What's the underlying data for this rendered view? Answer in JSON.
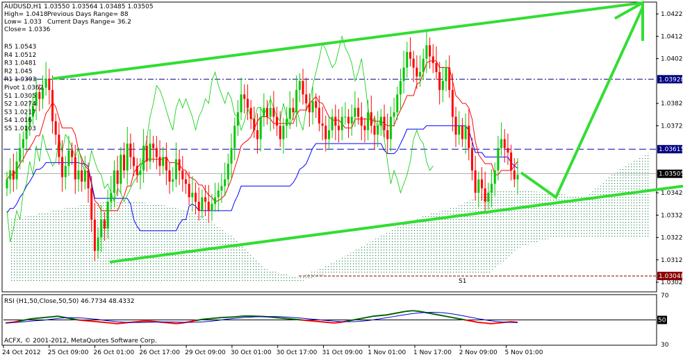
{
  "chart_data": {
    "type": "candlestick",
    "symbol_line": "AUDUSD,H1  1.03550 1.03564 1.03485 1.03505",
    "stats": [
      {
        "label": "High= 1.0418",
        "extra": "Previous Days Range= 88"
      },
      {
        "label": "Low= 1.033",
        "extra": "Current Days Range= 36.2"
      },
      {
        "label": "Close= 1.0336",
        "extra": ""
      }
    ],
    "pivots": [
      {
        "label": "R5 1.0543"
      },
      {
        "label": "R4 1.0512"
      },
      {
        "label": "R3 1.0481"
      },
      {
        "label": "R2 1.045"
      },
      {
        "label": "R1 1.0393"
      },
      {
        "label": "Pivot 1.0362"
      },
      {
        "label": "S1 1.0305"
      },
      {
        "label": "S2 1.0274"
      },
      {
        "label": "S3 1.0217"
      },
      {
        "label": "S4 1.016"
      },
      {
        "label": "S5 1.0103"
      }
    ],
    "price_axis": {
      "min": 1.0298,
      "max": 1.0427,
      "ticks": [
        "1.04220",
        "1.04120",
        "1.04020",
        "1.03820",
        "1.03720",
        "1.03420",
        "1.03320",
        "1.03220",
        "1.03120",
        "1.03020"
      ],
      "tick_values": [
        1.0422,
        1.0412,
        1.0402,
        1.0382,
        1.0372,
        1.0342,
        1.0332,
        1.0322,
        1.0312,
        1.0302
      ]
    },
    "price_tags": [
      {
        "label": "1.03928",
        "value": 1.03928,
        "color": "#000080"
      },
      {
        "label": "1.03615",
        "value": 1.03615,
        "color": "#000080"
      },
      {
        "label": "1.03505",
        "value": 1.03505,
        "color": "#000000"
      },
      {
        "label": "1.03048",
        "value": 1.03048,
        "color": "#8b0000"
      }
    ],
    "time_axis": {
      "labels": [
        "24 Oct 2012",
        "25 Oct 09:00",
        "26 Oct 01:00",
        "26 Oct 17:00",
        "29 Oct 09:00",
        "30 Oct 01:00",
        "30 Oct 17:00",
        "31 Oct 09:00",
        "1 Nov 01:00",
        "1 Nov 17:00",
        "2 Nov 09:00",
        "5 Nov 01:00"
      ],
      "bar_index": [
        0,
        16,
        32,
        48,
        64,
        80,
        96,
        112,
        128,
        144,
        160,
        176
      ]
    },
    "bars_total": 187,
    "closes": [
      1.0348,
      1.0352,
      1.0348,
      1.0356,
      1.0362,
      1.0366,
      1.0372,
      1.0376,
      1.0381,
      1.0387,
      1.0384,
      1.0389,
      1.0393,
      1.0388,
      1.0374,
      1.0368,
      1.0358,
      1.0349,
      1.0354,
      1.0361,
      1.0358,
      1.0348,
      1.0352,
      1.0347,
      1.0352,
      1.0344,
      1.033,
      1.0316,
      1.0322,
      1.033,
      1.0326,
      1.0338,
      1.0342,
      1.0352,
      1.0346,
      1.0359,
      1.0352,
      1.0364,
      1.0358,
      1.0354,
      1.035,
      1.0352,
      1.0363,
      1.0356,
      1.0364,
      1.0362,
      1.0358,
      1.0354,
      1.0358,
      1.0352,
      1.0347,
      1.0348,
      1.0357,
      1.0352,
      1.0348,
      1.0346,
      1.034,
      1.0342,
      1.0338,
      1.0334,
      1.034,
      1.0338,
      1.0334,
      1.0337,
      1.034,
      1.0343,
      1.0345,
      1.0348,
      1.0355,
      1.0362,
      1.0372,
      1.0378,
      1.0386,
      1.0384,
      1.038,
      1.0375,
      1.037,
      1.0366,
      1.0376,
      1.038,
      1.0376,
      1.038,
      1.0376,
      1.0372,
      1.0366,
      1.0372,
      1.0375,
      1.038,
      1.0378,
      1.0388,
      1.0392,
      1.0386,
      1.0382,
      1.0378,
      1.0383,
      1.038,
      1.0373,
      1.0372,
      1.0366,
      1.037,
      1.0376,
      1.0372,
      1.037,
      1.0376,
      1.0376,
      1.0373,
      1.0376,
      1.038,
      1.0376,
      1.0372,
      1.037,
      1.0378,
      1.0372,
      1.0368,
      1.0372,
      1.0376,
      1.037,
      1.0366,
      1.0376,
      1.0378,
      1.0386,
      1.0392,
      1.0398,
      1.0405,
      1.0402,
      1.0398,
      1.0394,
      1.0396,
      1.0402,
      1.0408,
      1.0403,
      1.04,
      1.0396,
      1.0388,
      1.0392,
      1.0398,
      1.0388,
      1.0376,
      1.0368,
      1.0372,
      1.0366,
      1.0372,
      1.0362,
      1.0352,
      1.0342,
      1.0348,
      1.0344,
      1.0338,
      1.0342,
      1.0346,
      1.0352,
      1.0362,
      1.0366,
      1.0362,
      1.036,
      1.0352,
      1.0348,
      1.035
    ],
    "series": [
      {
        "name": "Pivot",
        "level": 1.03615
      },
      {
        "name": "R1",
        "level": 1.03928
      },
      {
        "name": "S1",
        "level": 1.03048
      }
    ],
    "rsi": {
      "title": "RSI (H1,50,Close,50,50) 46.7734 48.4332",
      "ticks": [
        "70",
        "50",
        "30"
      ],
      "tick_values": [
        70,
        50,
        30
      ],
      "level": 50,
      "values": [
        47.5,
        48,
        49,
        50,
        51,
        51.5,
        52,
        52.5,
        53,
        52,
        51,
        50,
        49.5,
        49,
        48.5,
        48,
        47.5,
        47,
        47.5,
        48,
        48.5,
        49,
        49,
        48.5,
        48,
        47.5,
        47,
        47.5,
        48.5,
        49.5,
        50.5,
        51,
        51.5,
        52,
        52.2,
        52.5,
        53,
        53.2,
        53,
        52.8,
        52.5,
        52,
        51.5,
        51,
        50.5,
        50,
        49.5,
        49,
        48.5,
        48,
        47.5,
        48,
        49,
        50,
        51,
        52,
        53,
        53.5,
        54,
        55,
        56,
        57,
        57.5,
        57,
        56,
        55,
        54,
        53,
        52,
        51,
        50,
        49,
        48,
        47.5,
        47,
        47.5,
        48,
        48.5,
        48
      ]
    },
    "copyright": "ACFX, © 2001-2012, MetaQuotes Software Corp.",
    "colors": {
      "up": "#00c800",
      "down": "#ff0000",
      "trend": "#33dd33",
      "pivot": "#0000aa",
      "r1": "#000080",
      "s1": "#8b0000",
      "cloud": "#2e8b57",
      "tenkan": "#ff0000",
      "kijun": "#0000ff",
      "chikou": "#00cc00"
    }
  }
}
